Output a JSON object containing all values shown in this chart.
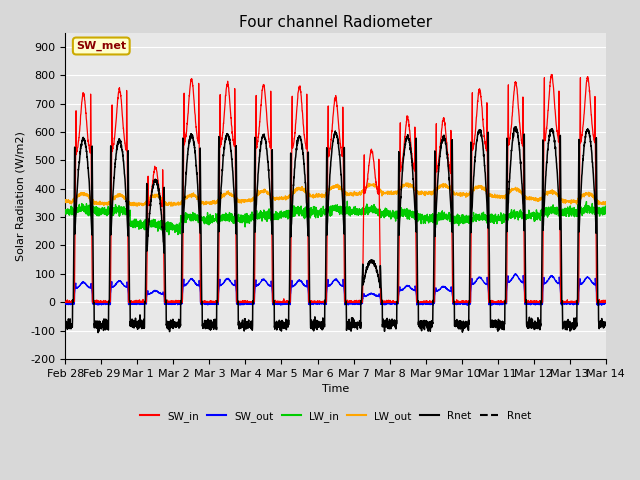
{
  "title": "Four channel Radiometer",
  "xlabel": "Time",
  "ylabel": "Solar Radiation (W/m2)",
  "ylim": [
    -200,
    950
  ],
  "yticks": [
    -200,
    -100,
    0,
    100,
    200,
    300,
    400,
    500,
    600,
    700,
    800,
    900
  ],
  "fig_bg_color": "#d8d8d8",
  "plot_bg_color": "#e8e8e8",
  "grid_color": "#ffffff",
  "annotation_text": "SW_met",
  "annotation_color": "#8b0000",
  "annotation_bg": "#ffffcc",
  "annotation_edge": "#ccaa00",
  "x_tick_labels": [
    "Feb 28",
    "Feb 29",
    "Mar 1",
    "Mar 2",
    "Mar 3",
    "Mar 4",
    "Mar 5",
    "Mar 6",
    "Mar 7",
    "Mar 8",
    "Mar 9",
    "Mar 10",
    "Mar 11",
    "Mar 12",
    "Mar 13",
    "Mar 14"
  ],
  "legend_entries": [
    "SW_in",
    "SW_out",
    "LW_in",
    "LW_out",
    "Rnet",
    "Rnet"
  ],
  "legend_colors": [
    "#ff0000",
    "#0000ff",
    "#00cc00",
    "#ffa500",
    "#000000",
    "#555555"
  ],
  "SW_in_peaks": [
    735,
    750,
    475,
    785,
    770,
    765,
    760,
    720,
    535,
    650,
    645,
    750,
    775,
    800,
    790
  ],
  "SW_out_peaks": [
    70,
    75,
    40,
    82,
    83,
    80,
    77,
    80,
    30,
    58,
    55,
    88,
    98,
    92,
    88
  ],
  "rnet_peaks": [
    575,
    570,
    430,
    588,
    592,
    588,
    582,
    597,
    145,
    583,
    580,
    607,
    613,
    610,
    607
  ],
  "rnet_night": -80,
  "LW_in_base": 305,
  "LW_out_base": 365,
  "n_days": 15,
  "pts_per_day": 240
}
